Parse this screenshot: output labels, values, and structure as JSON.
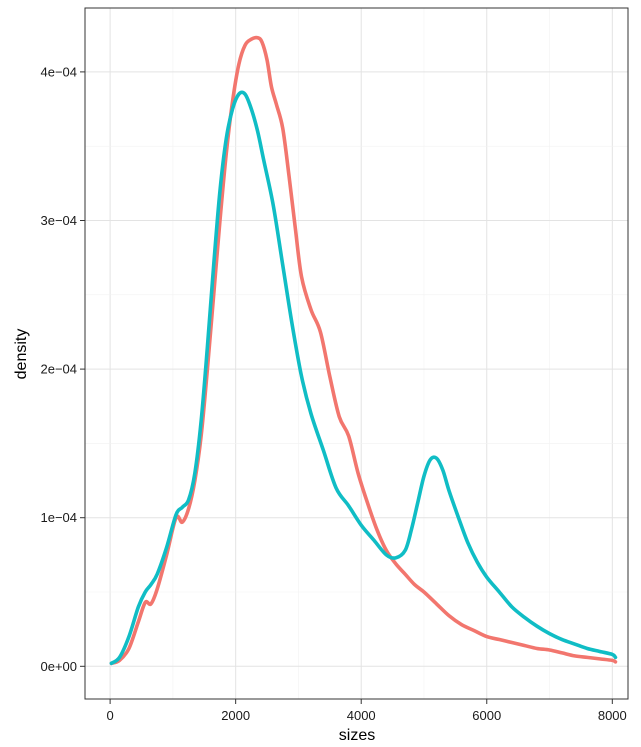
{
  "chart_data": {
    "type": "line",
    "title": "",
    "xlabel": "sizes",
    "ylabel": "density",
    "xlim": [
      -400,
      8250
    ],
    "ylim": [
      -2.2e-05,
      0.000443
    ],
    "x_ticks": [
      0,
      2000,
      4000,
      6000,
      8000
    ],
    "x_tick_labels": [
      "0",
      "2000",
      "4000",
      "6000",
      "8000"
    ],
    "y_ticks": [
      0,
      0.0001,
      0.0002,
      0.0003,
      0.0004
    ],
    "y_tick_labels": [
      "0e+00",
      "1e−04",
      "2e−04",
      "3e−04",
      "4e−04"
    ],
    "grid": true,
    "legend": "none",
    "series": [
      {
        "color": "#F2766E",
        "x": [
          20,
          150,
          300,
          450,
          560,
          650,
          750,
          900,
          1050,
          1150,
          1250,
          1350,
          1450,
          1550,
          1650,
          1750,
          1850,
          1950,
          2050,
          2150,
          2250,
          2350,
          2420,
          2500,
          2570,
          2650,
          2750,
          2850,
          2950,
          3050,
          3200,
          3350,
          3500,
          3650,
          3800,
          3950,
          4100,
          4250,
          4400,
          4550,
          4700,
          4850,
          5000,
          5200,
          5400,
          5600,
          5800,
          6000,
          6200,
          6400,
          6600,
          6800,
          7000,
          7200,
          7400,
          7600,
          7800,
          8000,
          8050
        ],
        "y": [
          2e-06,
          4e-06,
          1.2e-05,
          3e-05,
          4.3e-05,
          4.2e-05,
          5.2e-05,
          7.5e-05,
          0.0001,
          9.7e-05,
          0.000106,
          0.000125,
          0.000155,
          0.0002,
          0.00025,
          0.0003,
          0.000345,
          0.00038,
          0.000405,
          0.000418,
          0.000422,
          0.000423,
          0.00042,
          0.000408,
          0.00039,
          0.000378,
          0.000362,
          0.00033,
          0.000295,
          0.000262,
          0.00024,
          0.000225,
          0.000195,
          0.000168,
          0.000155,
          0.00013,
          0.00011,
          9.2e-05,
          7.8e-05,
          6.9e-05,
          6.2e-05,
          5.5e-05,
          5e-05,
          4.2e-05,
          3.4e-05,
          2.8e-05,
          2.4e-05,
          2e-05,
          1.8e-05,
          1.6e-05,
          1.4e-05,
          1.2e-05,
          1.1e-05,
          9e-06,
          7e-06,
          6e-06,
          5e-06,
          4e-06,
          3e-06
        ]
      },
      {
        "color": "#10BDC5",
        "x": [
          20,
          150,
          300,
          450,
          560,
          650,
          750,
          900,
          1050,
          1150,
          1250,
          1350,
          1450,
          1550,
          1650,
          1750,
          1850,
          1950,
          2050,
          2150,
          2250,
          2350,
          2450,
          2600,
          2750,
          2900,
          3050,
          3200,
          3400,
          3600,
          3800,
          4000,
          4200,
          4400,
          4550,
          4700,
          4800,
          4900,
          5000,
          5100,
          5200,
          5300,
          5400,
          5550,
          5700,
          5850,
          6000,
          6200,
          6400,
          6600,
          6800,
          7000,
          7200,
          7400,
          7600,
          7800,
          8000,
          8050
        ],
        "y": [
          2e-06,
          6e-06,
          2e-05,
          4e-05,
          5e-05,
          5.5e-05,
          6.2e-05,
          8e-05,
          0.000102,
          0.000107,
          0.000112,
          0.00013,
          0.000165,
          0.000215,
          0.00027,
          0.00032,
          0.000355,
          0.000375,
          0.000385,
          0.000385,
          0.000375,
          0.00036,
          0.00034,
          0.00031,
          0.00027,
          0.00023,
          0.000195,
          0.00017,
          0.000145,
          0.00012,
          0.000108,
          9.5e-05,
          8.5e-05,
          7.5e-05,
          7.3e-05,
          7.8e-05,
          9.2e-05,
          0.00011,
          0.000128,
          0.000139,
          0.00014,
          0.000132,
          0.000118,
          0.0001,
          8.3e-05,
          7e-05,
          6e-05,
          5e-05,
          4e-05,
          3.3e-05,
          2.7e-05,
          2.2e-05,
          1.8e-05,
          1.5e-05,
          1.2e-05,
          1e-05,
          8e-06,
          6e-06
        ]
      }
    ]
  }
}
